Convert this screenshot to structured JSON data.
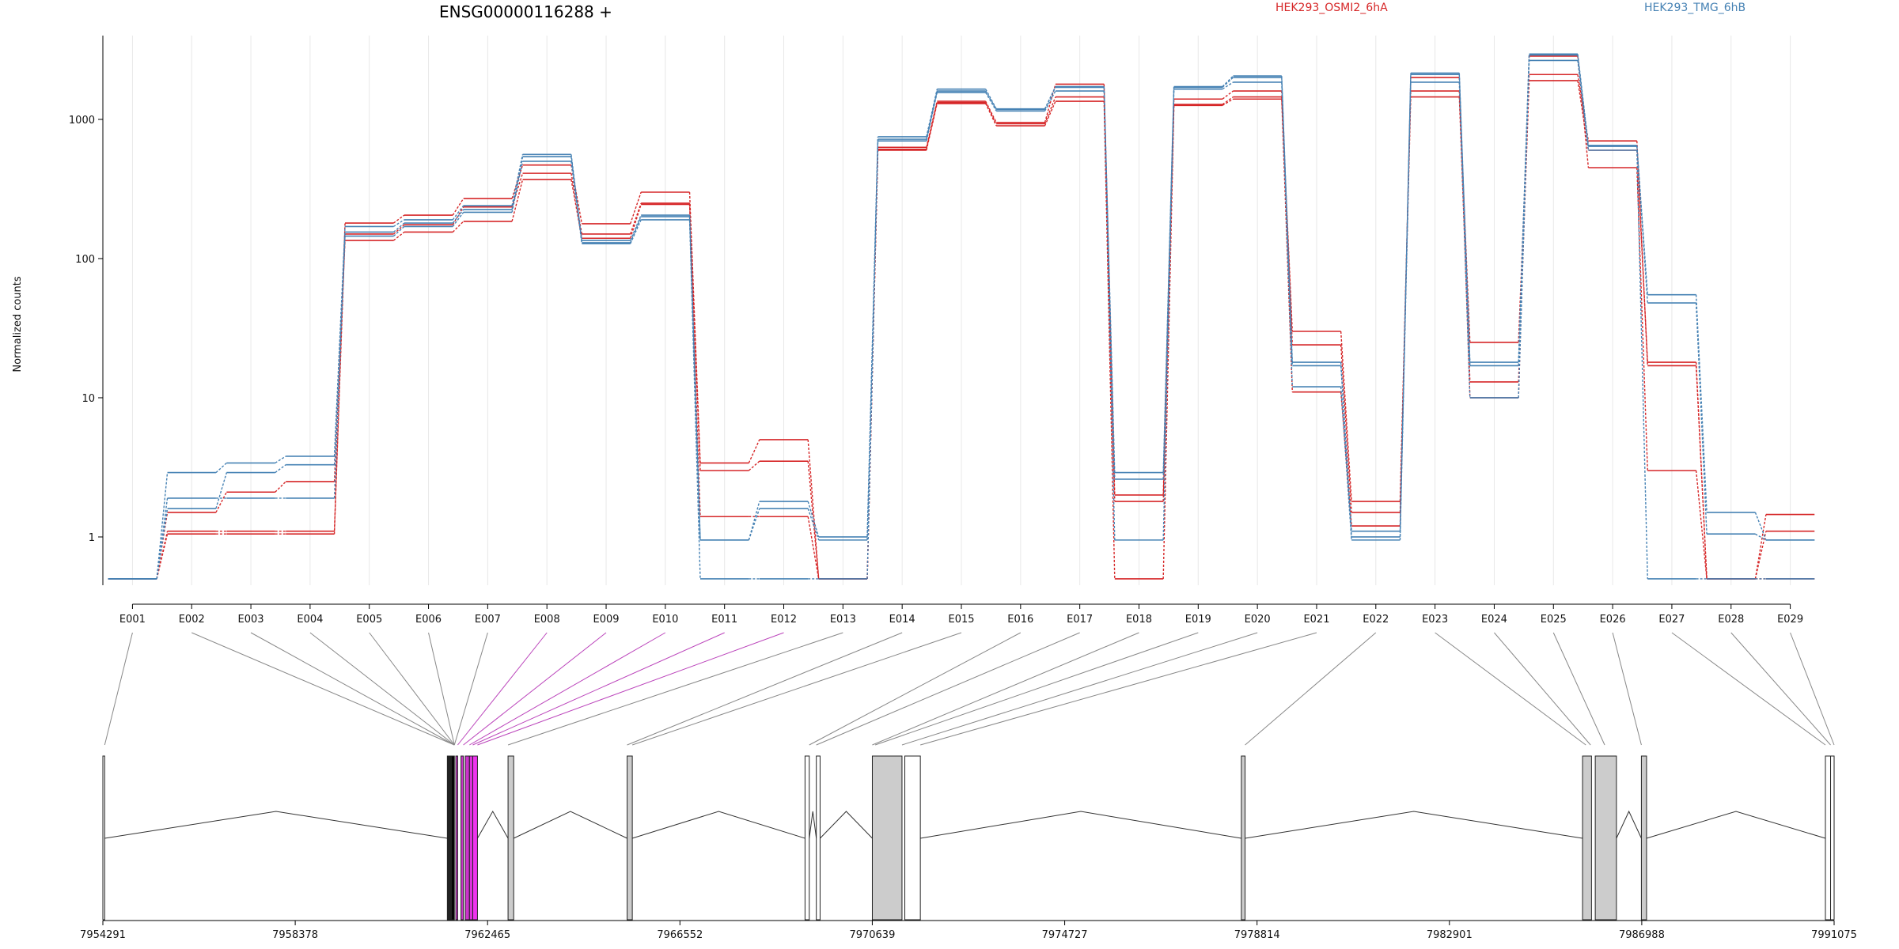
{
  "chart_data": {
    "type": "line",
    "title": "ENSG00000116288 +",
    "ylabel": "Normalized counts",
    "yscale": "log",
    "ylim": [
      0.45,
      4000
    ],
    "yticks": [
      "1",
      "10",
      "100",
      "1000"
    ],
    "yticks_values": [
      1,
      10,
      100,
      1000
    ],
    "categories": [
      "E001",
      "E002",
      "E003",
      "E004",
      "E005",
      "E006",
      "E007",
      "E008",
      "E009",
      "E010",
      "E011",
      "E012",
      "E013",
      "E014",
      "E015",
      "E016",
      "E017",
      "E018",
      "E019",
      "E020",
      "E021",
      "E022",
      "E023",
      "E024",
      "E025",
      "E026",
      "E027",
      "E028",
      "E029"
    ],
    "series": [
      {
        "name": "HEK293_OSMI2_6hA",
        "color": "#d62728",
        "samples": [
          [
            0.5,
            1.05,
            1.05,
            1.05,
            180,
            205,
            270,
            470,
            178,
            300,
            3.4,
            5.0,
            0.5,
            630,
            1350,
            950,
            1790,
            2.0,
            1280,
            1450,
            30,
            1.8,
            1600,
            25,
            2100,
            700,
            17,
            0.5,
            0.5
          ],
          [
            0.5,
            1.1,
            1.1,
            1.1,
            150,
            175,
            235,
            410,
            150,
            250,
            3.0,
            3.5,
            0.5,
            610,
            1320,
            930,
            1450,
            1.8,
            1400,
            1600,
            24,
            1.5,
            1450,
            13,
            1900,
            600,
            18,
            0.5,
            1.1
          ],
          [
            0.5,
            1.5,
            2.1,
            2.5,
            135,
            155,
            185,
            370,
            140,
            245,
            1.4,
            1.4,
            0.5,
            600,
            1300,
            900,
            1350,
            0.5,
            1260,
            1400,
            11,
            1.2,
            2000,
            10,
            2850,
            450,
            3.0,
            0.5,
            1.45
          ]
        ]
      },
      {
        "name": "HEK293_TMG_6hB",
        "color": "#4682b4",
        "samples": [
          [
            0.5,
            2.9,
            3.4,
            3.8,
            170,
            190,
            240,
            560,
            135,
            205,
            0.95,
            1.8,
            1.0,
            750,
            1650,
            1190,
            1720,
            2.9,
            1720,
            2050,
            18,
            1.0,
            2150,
            18,
            2950,
            650,
            55,
            1.5,
            0.95
          ],
          [
            0.5,
            1.6,
            2.9,
            3.3,
            155,
            180,
            225,
            540,
            130,
            200,
            0.95,
            1.6,
            0.95,
            720,
            1600,
            1180,
            1700,
            2.6,
            1700,
            2000,
            17,
            1.1,
            2100,
            17,
            2900,
            640,
            48,
            1.05,
            0.95
          ],
          [
            0.5,
            1.9,
            1.9,
            1.9,
            145,
            170,
            215,
            500,
            128,
            190,
            0.5,
            0.5,
            0.5,
            700,
            1560,
            1150,
            1600,
            0.95,
            1650,
            1850,
            12,
            0.95,
            1850,
            10,
            2650,
            600,
            0.5,
            0.5,
            0.5
          ]
        ]
      }
    ],
    "highlighted_exons": [
      "E008",
      "E009",
      "E010",
      "E011",
      "E012"
    ],
    "legend_placement": "top-right",
    "genome": {
      "xticks": [
        "7954291",
        "7958378",
        "7962465",
        "7966552",
        "7970639",
        "7974727",
        "7978814",
        "7982901",
        "7986988",
        "7991075"
      ],
      "xstart": 7954291,
      "xend": 7991075,
      "exons": [
        {
          "start": 7954291,
          "end": 7954330,
          "fill": "#ffffff"
        },
        {
          "start": 7961610,
          "end": 7961700,
          "fill": "#222222"
        },
        {
          "start": 7961700,
          "end": 7961760,
          "fill": "#000000"
        },
        {
          "start": 7961790,
          "end": 7961830,
          "fill": "#cc33cc"
        },
        {
          "start": 7961900,
          "end": 7961950,
          "fill": "#cc33cc"
        },
        {
          "start": 7961990,
          "end": 7962080,
          "fill": "#cc33cc"
        },
        {
          "start": 7962080,
          "end": 7962150,
          "fill": "#dd33dd"
        },
        {
          "start": 7962150,
          "end": 7962250,
          "fill": "#ee33ee"
        },
        {
          "start": 7962900,
          "end": 7963020,
          "fill": "#cccccc"
        },
        {
          "start": 7965430,
          "end": 7965540,
          "fill": "#cccccc"
        },
        {
          "start": 7969210,
          "end": 7969300,
          "fill": "#ffffff"
        },
        {
          "start": 7969450,
          "end": 7969530,
          "fill": "#ffffff"
        },
        {
          "start": 7970640,
          "end": 7971270,
          "fill": "#cccccc"
        },
        {
          "start": 7971330,
          "end": 7971660,
          "fill": "#ffffff"
        },
        {
          "start": 7978480,
          "end": 7978560,
          "fill": "#cccccc"
        },
        {
          "start": 7985730,
          "end": 7985920,
          "fill": "#cccccc"
        },
        {
          "start": 7986000,
          "end": 7986450,
          "fill": "#cccccc"
        },
        {
          "start": 7986980,
          "end": 7987090,
          "fill": "#cccccc"
        },
        {
          "start": 7990890,
          "end": 7991000,
          "fill": "#ffffff"
        },
        {
          "start": 7991000,
          "end": 7991075,
          "fill": "#ffffff"
        }
      ],
      "introns": [
        {
          "from": 7954330,
          "to": 7961610
        },
        {
          "from": 7962250,
          "to": 7962900
        },
        {
          "from": 7963020,
          "to": 7965430
        },
        {
          "from": 7965540,
          "to": 7969210
        },
        {
          "from": 7969300,
          "to": 7969450
        },
        {
          "from": 7969530,
          "to": 7970640
        },
        {
          "from": 7971660,
          "to": 7978480
        },
        {
          "from": 7978560,
          "to": 7985730
        },
        {
          "from": 7986450,
          "to": 7986980
        },
        {
          "from": 7987090,
          "to": 7990890
        }
      ],
      "connectors": [
        7954330,
        7961760,
        7961760,
        7961760,
        7961760,
        7961760,
        7961760,
        7961830,
        7961950,
        7962080,
        7962150,
        7962250,
        7962900,
        7965430,
        7965540,
        7969300,
        7969450,
        7970639,
        7970700,
        7971270,
        7971660,
        7978560,
        7985800,
        7985900,
        7986200,
        7986980,
        7990890,
        7991000,
        7991075
      ]
    }
  }
}
